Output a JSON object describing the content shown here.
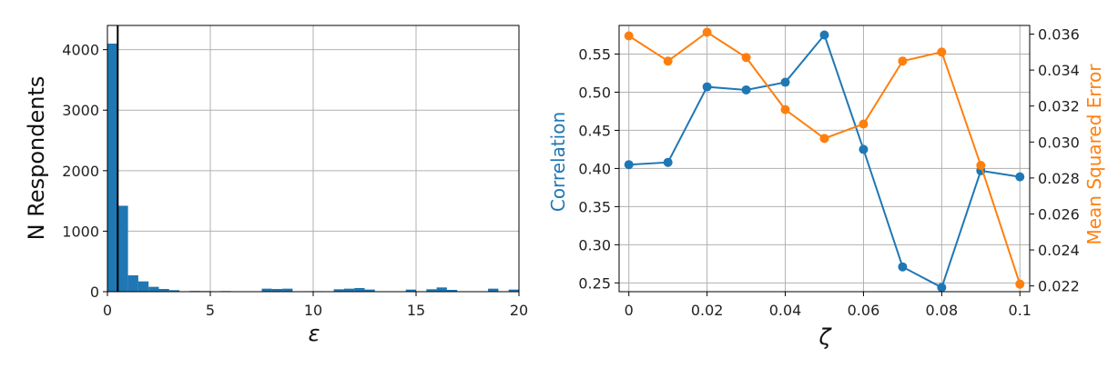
{
  "colors": {
    "hist": "#1f77b4",
    "correlation": "#1f77b4",
    "mse": "#ff7f0e",
    "grid": "#b0b0b0",
    "threshold_line": "#000000"
  },
  "chart_data": [
    {
      "type": "bar",
      "subtype": "histogram",
      "xlabel": "ε",
      "ylabel": "N Respondents",
      "xlim": [
        0,
        20
      ],
      "ylim": [
        0,
        4400
      ],
      "xticks": [
        0,
        5,
        10,
        15,
        20
      ],
      "xtick_labels": [
        "0",
        "5",
        "10",
        "15",
        "20"
      ],
      "yticks": [
        0,
        1000,
        2000,
        3000,
        4000
      ],
      "ytick_labels": [
        "0",
        "1000",
        "2000",
        "3000",
        "4000"
      ],
      "grid": true,
      "bin_width": 0.5,
      "bins": [
        {
          "x0": 0.0,
          "count": 4100
        },
        {
          "x0": 0.5,
          "count": 1420
        },
        {
          "x0": 1.0,
          "count": 270
        },
        {
          "x0": 1.5,
          "count": 170
        },
        {
          "x0": 2.0,
          "count": 80
        },
        {
          "x0": 2.5,
          "count": 45
        },
        {
          "x0": 3.0,
          "count": 25
        },
        {
          "x0": 4.0,
          "count": 12
        },
        {
          "x0": 4.5,
          "count": 10
        },
        {
          "x0": 5.5,
          "count": 10
        },
        {
          "x0": 6.0,
          "count": 6
        },
        {
          "x0": 7.5,
          "count": 50
        },
        {
          "x0": 8.0,
          "count": 45
        },
        {
          "x0": 8.5,
          "count": 50
        },
        {
          "x0": 9.5,
          "count": 8
        },
        {
          "x0": 10.0,
          "count": 8
        },
        {
          "x0": 11.0,
          "count": 40
        },
        {
          "x0": 11.5,
          "count": 50
        },
        {
          "x0": 12.0,
          "count": 60
        },
        {
          "x0": 12.5,
          "count": 35
        },
        {
          "x0": 14.5,
          "count": 35
        },
        {
          "x0": 15.5,
          "count": 40
        },
        {
          "x0": 16.0,
          "count": 70
        },
        {
          "x0": 16.5,
          "count": 30
        },
        {
          "x0": 18.5,
          "count": 50
        },
        {
          "x0": 19.5,
          "count": 35
        }
      ],
      "vertical_line_x": 0.5
    },
    {
      "type": "line",
      "xlabel": "ζ",
      "xlim": [
        -0.0025,
        0.1025
      ],
      "xticks": [
        0,
        0.02,
        0.04,
        0.06,
        0.08,
        0.1
      ],
      "xtick_labels": [
        "0",
        "0.02",
        "0.04",
        "0.06",
        "0.08",
        "0.1"
      ],
      "grid": true,
      "x": [
        0,
        0.01,
        0.02,
        0.03,
        0.04,
        0.05,
        0.06,
        0.07,
        0.08,
        0.09,
        0.1
      ],
      "left_axis": {
        "label": "Correlation",
        "lim": [
          0.2385,
          0.5875
        ],
        "ticks": [
          0.25,
          0.3,
          0.35,
          0.4,
          0.45,
          0.5,
          0.55
        ],
        "tick_labels": [
          "0.25",
          "0.30",
          "0.35",
          "0.40",
          "0.45",
          "0.50",
          "0.55"
        ]
      },
      "right_axis": {
        "label": "Mean Squared Error",
        "lim": [
          0.02168,
          0.03648
        ],
        "ticks": [
          0.022,
          0.024,
          0.026,
          0.028,
          0.03,
          0.032,
          0.034,
          0.036
        ],
        "tick_labels": [
          "0.022",
          "0.024",
          "0.026",
          "0.028",
          "0.030",
          "0.032",
          "0.034",
          "0.036"
        ]
      },
      "series": [
        {
          "axis": "left",
          "values": [
            0.405,
            0.408,
            0.507,
            0.503,
            0.513,
            0.575,
            0.425,
            0.271,
            0.244,
            0.397,
            0.389
          ]
        },
        {
          "axis": "right",
          "values": [
            0.0359,
            0.0345,
            0.0361,
            0.0347,
            0.0318,
            0.0302,
            0.031,
            0.0345,
            0.035,
            0.0287,
            0.0221
          ]
        }
      ]
    }
  ]
}
